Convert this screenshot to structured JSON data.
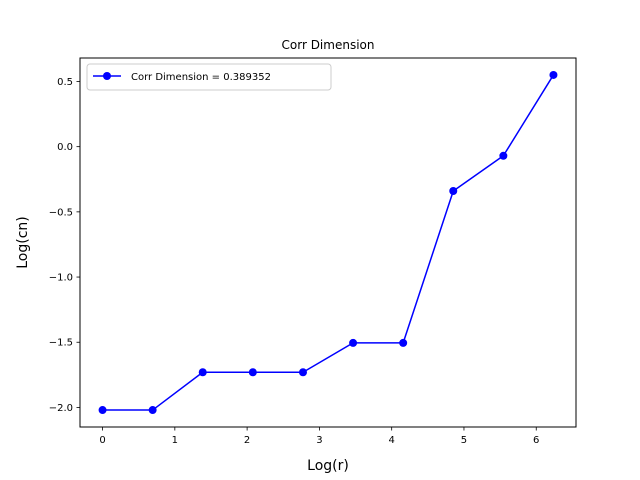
{
  "chart_data": {
    "type": "line",
    "title": "Corr Dimension",
    "xlabel": "Log(r)",
    "ylabel": "Log(cn)",
    "xlim": [
      -0.312,
      6.55
    ],
    "ylim": [
      -2.15,
      0.68
    ],
    "xticks": [
      0,
      1,
      2,
      3,
      4,
      5,
      6
    ],
    "xtick_labels": [
      "0",
      "1",
      "2",
      "3",
      "4",
      "5",
      "6"
    ],
    "yticks": [
      -2.0,
      -1.5,
      -1.0,
      -0.5,
      0.0,
      0.5
    ],
    "ytick_labels": [
      "−2.0",
      "−1.5",
      "−1.0",
      "−0.5",
      "0.0",
      "0.5"
    ],
    "grid": false,
    "legend_position": "upper-left",
    "series": [
      {
        "name": "Corr Dimension = 0.389352",
        "color": "#0000ff",
        "marker": "circle",
        "x": [
          0.0,
          0.693,
          1.386,
          2.079,
          2.773,
          3.466,
          4.159,
          4.852,
          5.545,
          6.238
        ],
        "y": [
          -2.02,
          -2.02,
          -1.73,
          -1.73,
          -1.73,
          -1.505,
          -1.505,
          -0.34,
          -0.07,
          0.55
        ]
      }
    ]
  }
}
